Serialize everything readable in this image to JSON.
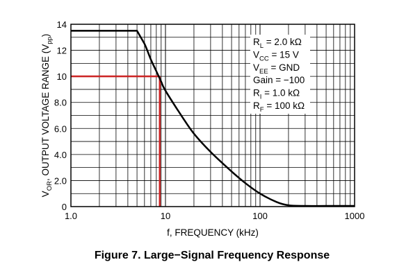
{
  "caption": "Figure 7. Large−Signal Frequency Response",
  "chart_data": {
    "type": "line",
    "title": "",
    "xlabel": "f, FREQUENCY (kHz)",
    "ylabel": {
      "main": "V",
      "sub1": "OR",
      "middle": ", OUTPUT VOLTAGE RANGE (V",
      "sub2": "pp",
      "end": ")"
    },
    "x_scale": "log",
    "xlim": [
      1.0,
      1000
    ],
    "ylim": [
      0,
      14
    ],
    "grid": true,
    "x_tick_labels": [
      "1.0",
      "10",
      "100",
      "1000"
    ],
    "x_tick_values": [
      1,
      10,
      100,
      1000
    ],
    "y_tick_labels": [
      "0",
      "2.0",
      "4.0",
      "6.0",
      "8.0",
      "10",
      "12",
      "14"
    ],
    "y_tick_values": [
      0,
      2,
      4,
      6,
      8,
      10,
      12,
      14
    ],
    "series": [
      {
        "color": "#000000",
        "x": [
          1.0,
          2.0,
          3.0,
          4.0,
          5.0,
          6.0,
          7.0,
          8.0,
          9.0,
          10,
          15,
          20,
          30,
          50,
          70,
          100,
          150,
          200,
          300,
          500,
          1000
        ],
        "y": [
          13.5,
          13.5,
          13.5,
          13.5,
          13.5,
          12.5,
          11.3,
          10.4,
          9.6,
          8.9,
          6.9,
          5.6,
          4.2,
          2.7,
          1.8,
          1.0,
          0.35,
          0.1,
          0.05,
          0.05,
          0.05
        ]
      }
    ],
    "annotation": {
      "color": "#cc2222",
      "y_level": 10,
      "x_at_level": 8.7
    },
    "conditions": [
      {
        "main": "R",
        "sub": "L",
        "rest": " = 2.0 kΩ"
      },
      {
        "main": "V",
        "sub": "CC",
        "rest": " = 15 V"
      },
      {
        "main": "V",
        "sub": "EE",
        "rest": " = GND"
      },
      {
        "main": "Gain = −100",
        "sub": "",
        "rest": ""
      },
      {
        "main": "R",
        "sub": "I",
        "rest": " = 1.0 kΩ"
      },
      {
        "main": "R",
        "sub": "F",
        "rest": " = 100 kΩ"
      }
    ]
  }
}
